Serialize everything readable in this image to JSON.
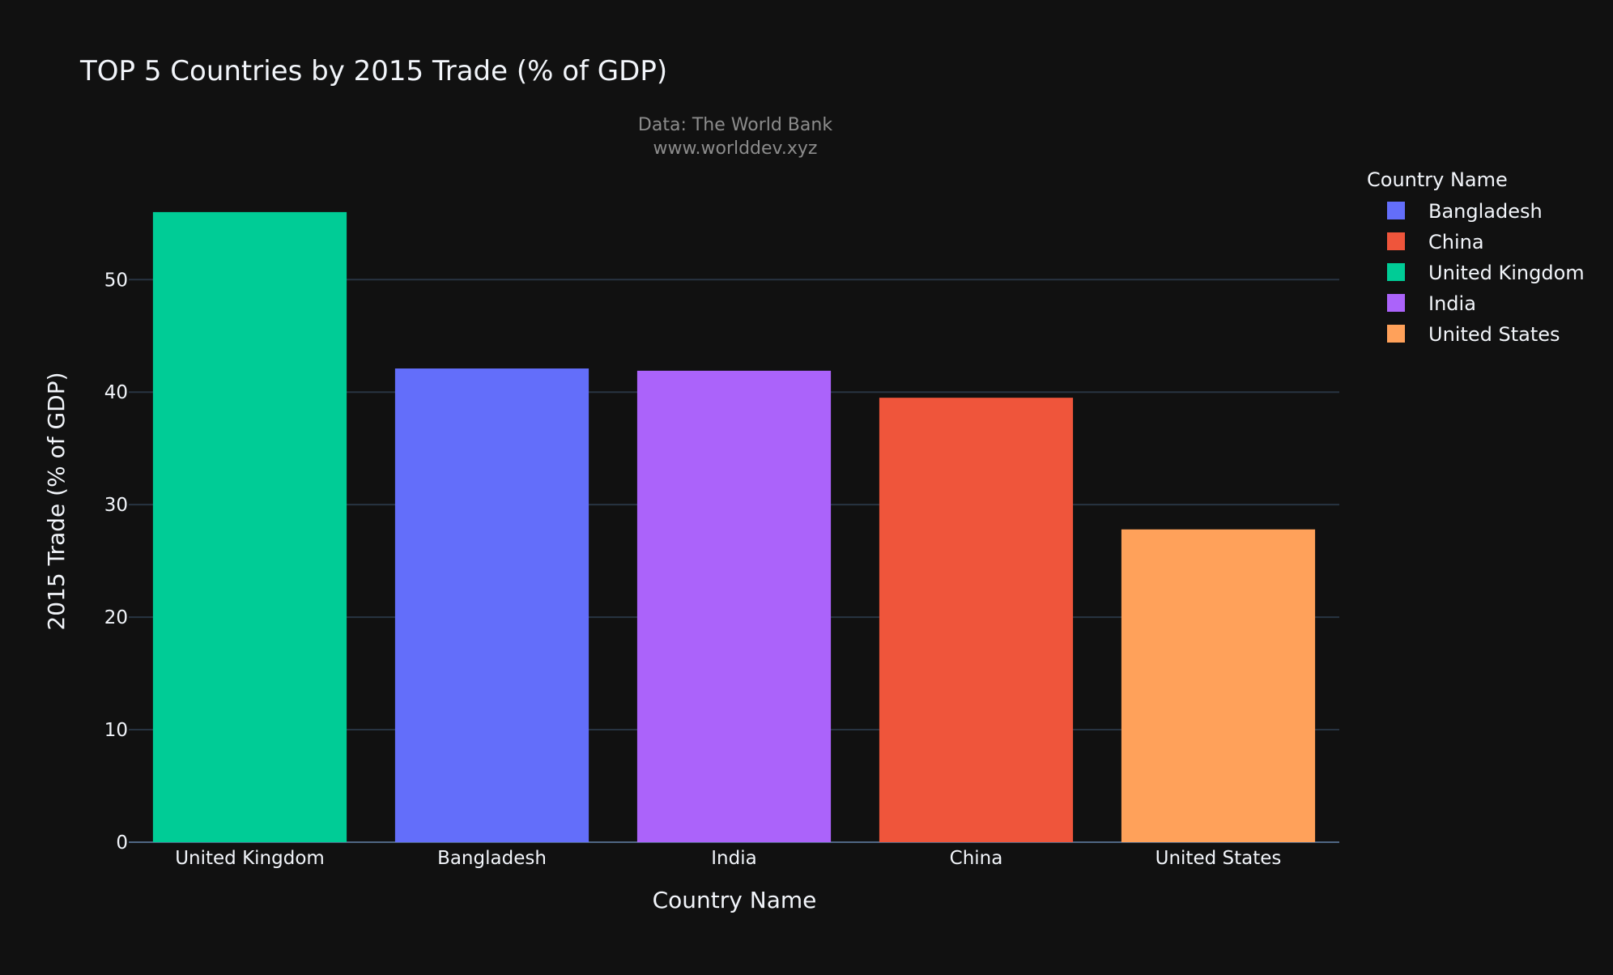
{
  "chart_data": {
    "type": "bar",
    "title": "TOP 5 Countries by 2015 Trade (% of GDP)",
    "subtitle_lines": [
      "Data: The World Bank",
      "www.worlddev.xyz"
    ],
    "xlabel": "Country Name",
    "ylabel": "2015 Trade (% of GDP)",
    "categories": [
      "United Kingdom",
      "Bangladesh",
      "India",
      "China",
      "United States"
    ],
    "values": [
      56.0,
      42.1,
      41.9,
      39.5,
      27.8
    ],
    "colors": [
      "#00cc96",
      "#636efa",
      "#ab63fa",
      "#ef553b",
      "#ffa15a"
    ],
    "ylim": [
      0,
      58.8
    ],
    "yticks": [
      0,
      10,
      20,
      30,
      40,
      50
    ],
    "grid": true,
    "legend": {
      "title": "Country Name",
      "placement": "right",
      "items": [
        {
          "label": "Bangladesh",
          "color": "#636efa"
        },
        {
          "label": "China",
          "color": "#ef553b"
        },
        {
          "label": "United Kingdom",
          "color": "#00cc96"
        },
        {
          "label": "India",
          "color": "#ab63fa"
        },
        {
          "label": "United States",
          "color": "#ffa15a"
        }
      ]
    },
    "background": "#111111",
    "gridcolor": "#283442",
    "text_color": "#f2f5fa",
    "subtitle_color": "#8c8c8c"
  }
}
